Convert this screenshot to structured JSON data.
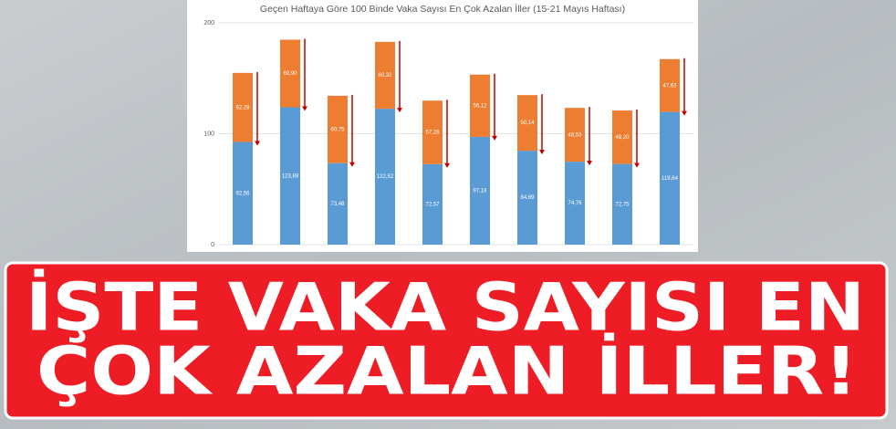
{
  "chart_data": {
    "type": "stacked_bar",
    "title": "Geçen Haftaya Göre 100 Binde Vaka Sayısı En Çok Azalan İller (15-21 Mayıs Haftası)",
    "categories": [
      null,
      null,
      null,
      null,
      null,
      null,
      null,
      null,
      null,
      null
    ],
    "series": [
      {
        "color": "#5b9bd5",
        "values": [
          92.56,
          123.88,
          73.48,
          122.52,
          72.57,
          97.18,
          84.69,
          74.76,
          72.75,
          119.64
        ],
        "value_labels": [
          "92,56",
          "123,88",
          "73,48",
          "122,52",
          "72,57",
          "97,18",
          "84,69",
          "74,76",
          "72,75",
          "119,64"
        ]
      },
      {
        "color": "#ed7d31",
        "values": [
          62.28,
          60.9,
          60.75,
          60.32,
          57.28,
          56.12,
          50.14,
          48.53,
          48.2,
          47.63
        ],
        "value_labels": [
          "62,28",
          "60,90",
          "60,75",
          "60,32",
          "57,28",
          "56,12",
          "50,14",
          "48,53",
          "48,20",
          "47,63"
        ]
      }
    ],
    "ylim": [
      0,
      200
    ],
    "yticks": [
      0,
      100,
      200
    ],
    "grid": true
  },
  "headline": {
    "lines": [
      "İŞTE VAKA SAYISI EN",
      "ÇOK AZALAN İLLER!"
    ]
  }
}
